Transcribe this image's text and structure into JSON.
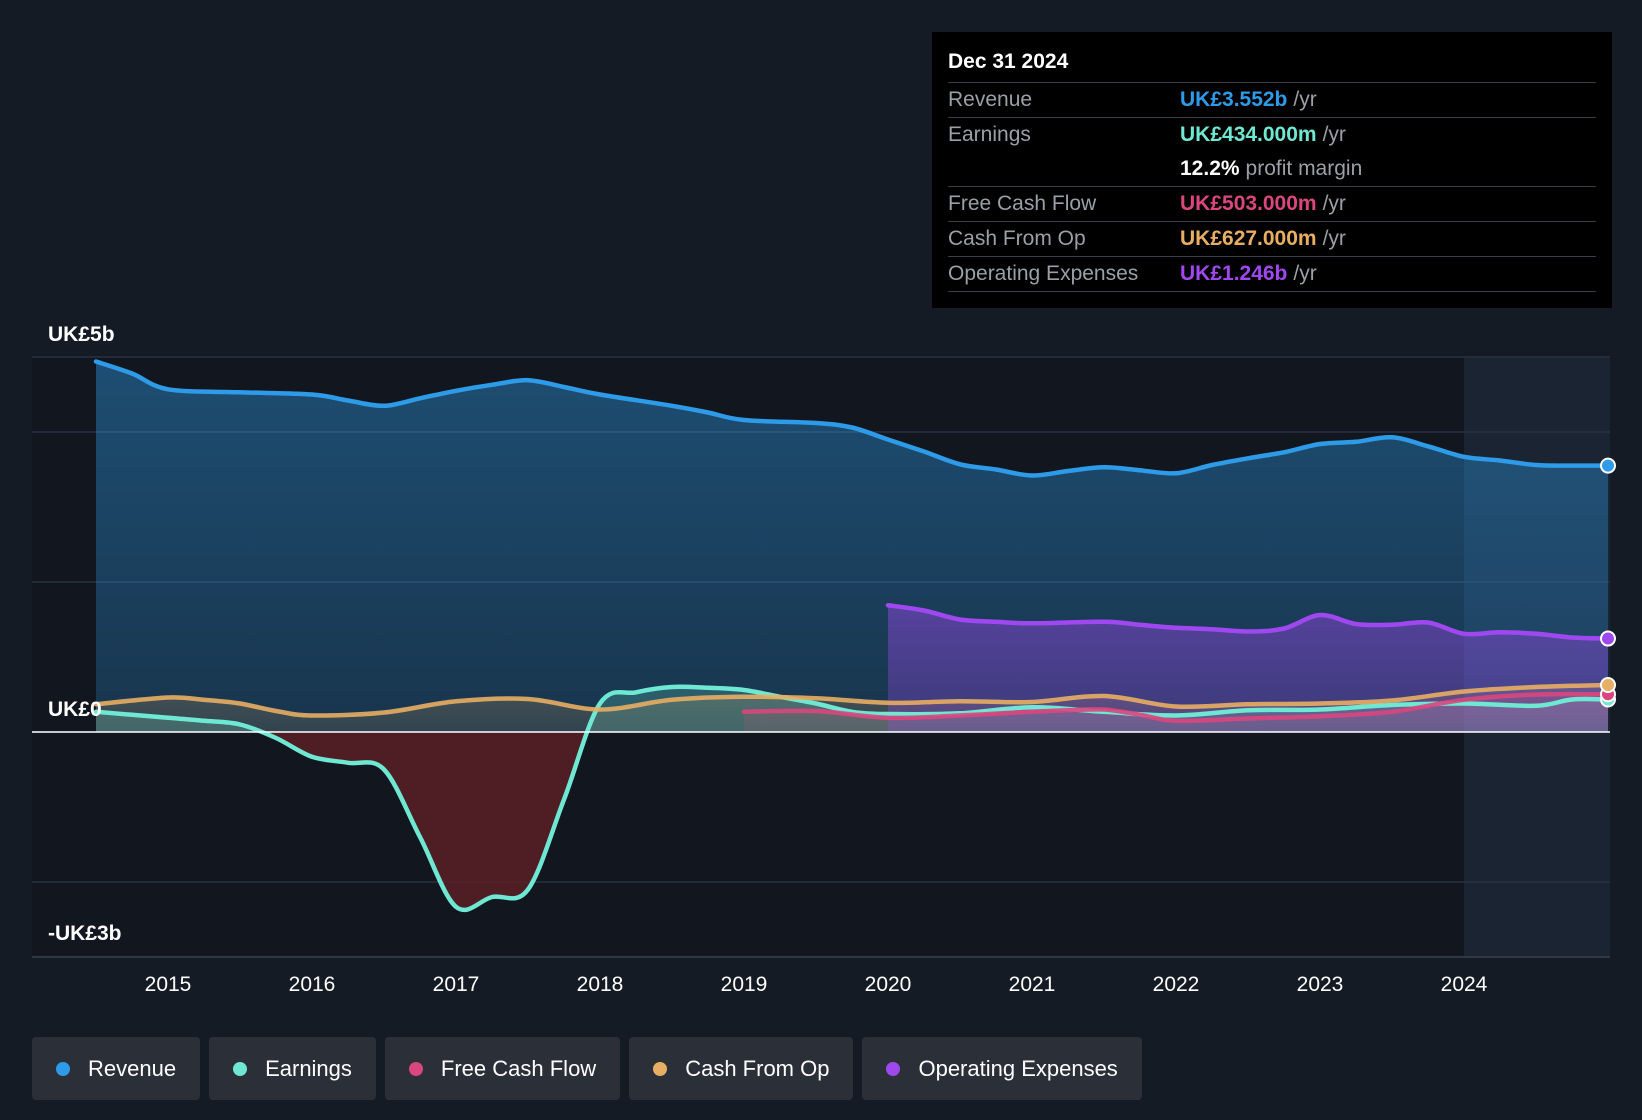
{
  "tooltip": {
    "date": "Dec 31 2024",
    "rows": [
      {
        "label": "Revenue",
        "value": "UK£3.552b",
        "unit": "/yr",
        "color": "#2d9be8"
      },
      {
        "label": "Earnings",
        "value": "UK£434.000m",
        "unit": "/yr",
        "color": "#6ee8d2"
      },
      {
        "margin_value": "12.2%",
        "margin_text": "profit margin"
      },
      {
        "label": "Free Cash Flow",
        "value": "UK£503.000m",
        "unit": "/yr",
        "color": "#d9477e"
      },
      {
        "label": "Cash From Op",
        "value": "UK£627.000m",
        "unit": "/yr",
        "color": "#e8ae63"
      },
      {
        "label": "Operating Expenses",
        "value": "UK£1.246b",
        "unit": "/yr",
        "color": "#a048f0"
      }
    ]
  },
  "legend": [
    {
      "label": "Revenue",
      "color": "#2d9be8"
    },
    {
      "label": "Earnings",
      "color": "#6ee8d2"
    },
    {
      "label": "Free Cash Flow",
      "color": "#d9477e"
    },
    {
      "label": "Cash From Op",
      "color": "#e8ae63"
    },
    {
      "label": "Operating Expenses",
      "color": "#a048f0"
    }
  ],
  "chart_data": {
    "type": "line",
    "title": "",
    "xlabel": "",
    "ylabel": "",
    "x_range": [
      2014.0,
      2025.0
    ],
    "ylim": [
      -3.0,
      5.0
    ],
    "y_tick_labels": [
      {
        "value": 5,
        "label": "UK£5b"
      },
      {
        "value": 0,
        "label": "UK£0"
      },
      {
        "value": -3,
        "label": "-UK£3b"
      }
    ],
    "x_ticks": [
      2015,
      2016,
      2017,
      2018,
      2019,
      2020,
      2021,
      2022,
      2023,
      2024
    ],
    "x_tick_labels": [
      "2015",
      "2016",
      "2017",
      "2018",
      "2019",
      "2020",
      "2021",
      "2022",
      "2023",
      "2024"
    ],
    "gridlines": [
      5,
      4,
      2,
      0,
      -2
    ],
    "highlight_from": 2024.0,
    "series": [
      {
        "name": "Revenue",
        "color": "#2d9be8",
        "fill": true,
        "end_marker": true,
        "points": [
          [
            2014.5,
            4.94
          ],
          [
            2014.75,
            4.78
          ],
          [
            2015.0,
            4.57
          ],
          [
            2015.5,
            4.53
          ],
          [
            2016.0,
            4.5
          ],
          [
            2016.25,
            4.42
          ],
          [
            2016.5,
            4.35
          ],
          [
            2016.75,
            4.45
          ],
          [
            2017.0,
            4.55
          ],
          [
            2017.25,
            4.63
          ],
          [
            2017.5,
            4.69
          ],
          [
            2017.75,
            4.6
          ],
          [
            2018.0,
            4.5
          ],
          [
            2018.5,
            4.35
          ],
          [
            2018.75,
            4.26
          ],
          [
            2019.0,
            4.16
          ],
          [
            2019.5,
            4.12
          ],
          [
            2019.75,
            4.06
          ],
          [
            2020.0,
            3.9
          ],
          [
            2020.25,
            3.74
          ],
          [
            2020.5,
            3.57
          ],
          [
            2020.75,
            3.5
          ],
          [
            2021.0,
            3.42
          ],
          [
            2021.25,
            3.48
          ],
          [
            2021.5,
            3.53
          ],
          [
            2021.75,
            3.49
          ],
          [
            2022.0,
            3.45
          ],
          [
            2022.25,
            3.56
          ],
          [
            2022.5,
            3.65
          ],
          [
            2022.75,
            3.73
          ],
          [
            2023.0,
            3.84
          ],
          [
            2023.25,
            3.87
          ],
          [
            2023.5,
            3.93
          ],
          [
            2023.75,
            3.81
          ],
          [
            2024.0,
            3.67
          ],
          [
            2024.25,
            3.62
          ],
          [
            2024.5,
            3.56
          ],
          [
            2024.75,
            3.552
          ],
          [
            2025.0,
            3.552
          ]
        ]
      },
      {
        "name": "Earnings",
        "color": "#6ee8d2",
        "fill": true,
        "end_marker": true,
        "points": [
          [
            2014.5,
            0.27
          ],
          [
            2014.75,
            0.23
          ],
          [
            2015.0,
            0.19
          ],
          [
            2015.25,
            0.15
          ],
          [
            2015.5,
            0.1
          ],
          [
            2015.75,
            -0.08
          ],
          [
            2016.0,
            -0.33
          ],
          [
            2016.25,
            -0.41
          ],
          [
            2016.5,
            -0.5
          ],
          [
            2016.75,
            -1.4
          ],
          [
            2017.0,
            -2.33
          ],
          [
            2017.25,
            -2.2
          ],
          [
            2017.5,
            -2.1
          ],
          [
            2017.75,
            -0.9
          ],
          [
            2018.0,
            0.38
          ],
          [
            2018.25,
            0.53
          ],
          [
            2018.5,
            0.6
          ],
          [
            2018.75,
            0.59
          ],
          [
            2019.0,
            0.56
          ],
          [
            2019.25,
            0.47
          ],
          [
            2019.5,
            0.38
          ],
          [
            2019.75,
            0.27
          ],
          [
            2020.0,
            0.24
          ],
          [
            2020.5,
            0.25
          ],
          [
            2021.0,
            0.33
          ],
          [
            2021.5,
            0.27
          ],
          [
            2022.0,
            0.22
          ],
          [
            2022.5,
            0.29
          ],
          [
            2023.0,
            0.3
          ],
          [
            2023.5,
            0.36
          ],
          [
            2024.0,
            0.38
          ],
          [
            2024.5,
            0.35
          ],
          [
            2024.75,
            0.434
          ],
          [
            2025.0,
            0.434
          ]
        ]
      },
      {
        "name": "Free Cash Flow",
        "color": "#d9477e",
        "fill": true,
        "end_marker": true,
        "points": [
          [
            2019.0,
            0.27
          ],
          [
            2019.5,
            0.28
          ],
          [
            2020.0,
            0.19
          ],
          [
            2020.5,
            0.22
          ],
          [
            2021.0,
            0.27
          ],
          [
            2021.25,
            0.29
          ],
          [
            2021.5,
            0.3
          ],
          [
            2021.75,
            0.23
          ],
          [
            2022.0,
            0.15
          ],
          [
            2022.5,
            0.18
          ],
          [
            2023.0,
            0.21
          ],
          [
            2023.5,
            0.27
          ],
          [
            2024.0,
            0.43
          ],
          [
            2024.5,
            0.5
          ],
          [
            2025.0,
            0.503
          ]
        ]
      },
      {
        "name": "Cash From Op",
        "color": "#e8ae63",
        "fill": true,
        "end_marker": true,
        "points": [
          [
            2014.5,
            0.37
          ],
          [
            2015.0,
            0.46
          ],
          [
            2015.25,
            0.43
          ],
          [
            2015.5,
            0.38
          ],
          [
            2015.75,
            0.28
          ],
          [
            2016.0,
            0.22
          ],
          [
            2016.5,
            0.26
          ],
          [
            2017.0,
            0.41
          ],
          [
            2017.5,
            0.44
          ],
          [
            2018.0,
            0.3
          ],
          [
            2018.5,
            0.43
          ],
          [
            2019.0,
            0.47
          ],
          [
            2019.5,
            0.45
          ],
          [
            2020.0,
            0.39
          ],
          [
            2020.5,
            0.41
          ],
          [
            2021.0,
            0.4
          ],
          [
            2021.5,
            0.48
          ],
          [
            2022.0,
            0.34
          ],
          [
            2022.5,
            0.37
          ],
          [
            2023.0,
            0.38
          ],
          [
            2023.5,
            0.42
          ],
          [
            2024.0,
            0.54
          ],
          [
            2024.5,
            0.6
          ],
          [
            2025.0,
            0.627
          ]
        ]
      },
      {
        "name": "Operating Expenses",
        "color": "#a048f0",
        "fill": true,
        "end_marker": true,
        "points": [
          [
            2020.0,
            1.69
          ],
          [
            2020.25,
            1.62
          ],
          [
            2020.5,
            1.5
          ],
          [
            2020.75,
            1.47
          ],
          [
            2021.0,
            1.45
          ],
          [
            2021.5,
            1.47
          ],
          [
            2021.75,
            1.43
          ],
          [
            2022.0,
            1.39
          ],
          [
            2022.25,
            1.37
          ],
          [
            2022.5,
            1.34
          ],
          [
            2022.75,
            1.38
          ],
          [
            2023.0,
            1.56
          ],
          [
            2023.25,
            1.44
          ],
          [
            2023.5,
            1.43
          ],
          [
            2023.75,
            1.46
          ],
          [
            2024.0,
            1.31
          ],
          [
            2024.25,
            1.33
          ],
          [
            2024.5,
            1.31
          ],
          [
            2024.75,
            1.26
          ],
          [
            2025.0,
            1.246
          ]
        ]
      }
    ]
  }
}
